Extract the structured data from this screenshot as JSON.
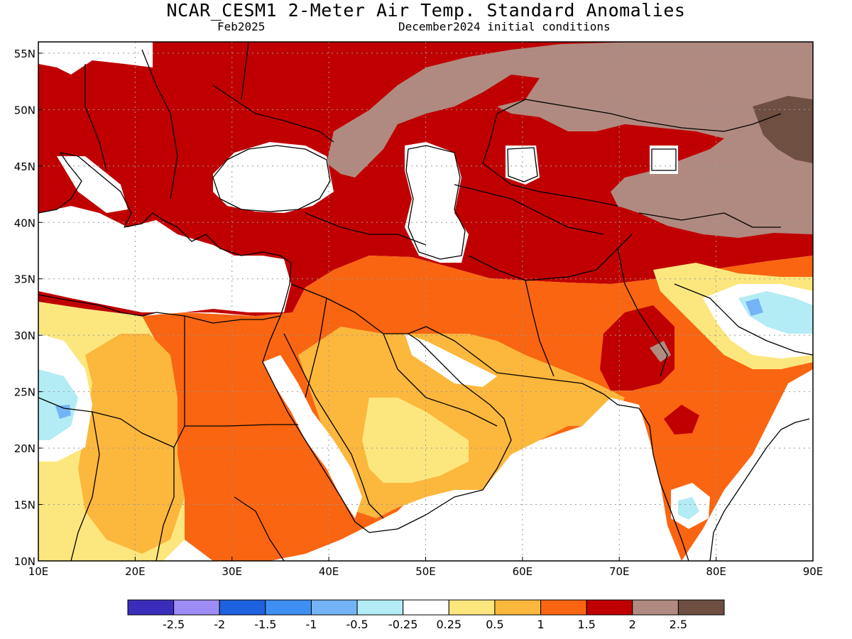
{
  "title": "NCAR_CESM1 2-Meter Air Temp. Standard Anomalies",
  "valid_month": "Feb2025",
  "initial_conditions": "December2024 initial conditions",
  "map": {
    "lon_range": [
      10,
      90
    ],
    "lat_range": [
      10,
      56
    ],
    "lon_ticks": [
      10,
      20,
      30,
      40,
      50,
      60,
      70,
      80,
      90
    ],
    "lon_tick_labels": [
      "10E",
      "20E",
      "30E",
      "40E",
      "50E",
      "60E",
      "70E",
      "80E",
      "90E"
    ],
    "lat_ticks": [
      10,
      15,
      20,
      25,
      30,
      35,
      40,
      45,
      50,
      55
    ],
    "lat_tick_labels": [
      "10N",
      "15N",
      "20N",
      "25N",
      "30N",
      "35N",
      "40N",
      "45N",
      "50N",
      "55N"
    ],
    "grid": "dotted"
  },
  "colorbar": {
    "colors": [
      "#3a2dbb",
      "#9e8cf5",
      "#1f62e0",
      "#3f8ff2",
      "#74b4f6",
      "#b3ecf4",
      "#ffffff",
      "#fce77f",
      "#fcb73d",
      "#f96511",
      "#c00000",
      "#b08a80",
      "#6e4f42"
    ],
    "labels": [
      "-2.5",
      "-2",
      "-1.5",
      "-1",
      "-0.5",
      "-0.25",
      "0.25",
      "0.5",
      "1",
      "1.5",
      "2",
      "2.5"
    ]
  }
}
